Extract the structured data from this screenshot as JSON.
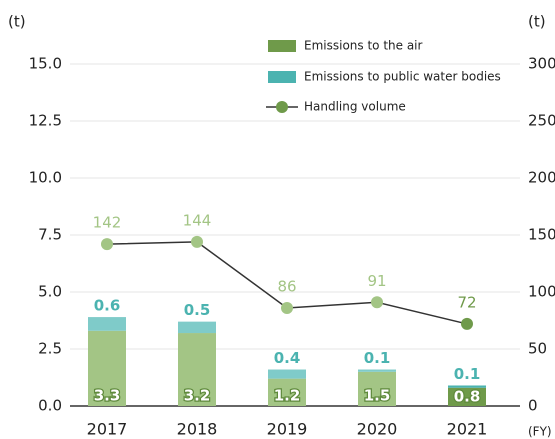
{
  "chart_data": {
    "type": "bar",
    "y_label": "(t)",
    "y2_label": "(t)",
    "x_label": "(FY)",
    "categories": [
      "2017",
      "2018",
      "2019",
      "2020",
      "2021"
    ],
    "series": [
      {
        "name": "Emissions to the air",
        "color": "#6f9a4a",
        "bar_colors": [
          "#a3c585",
          "#a3c585",
          "#a3c585",
          "#a3c585",
          "#6f9a4a"
        ],
        "values": [
          3.3,
          3.2,
          1.2,
          1.5,
          0.8
        ]
      },
      {
        "name": "Emissions to public water bodies",
        "color": "#4bb3b0",
        "bar_colors": [
          "#7fcbc9",
          "#7fcbc9",
          "#7fcbc9",
          "#7fcbc9",
          "#4bb3b0"
        ],
        "values": [
          0.6,
          0.5,
          0.4,
          0.1,
          0.1
        ]
      },
      {
        "name": "Handling volume",
        "type": "line",
        "axis": "y2",
        "color": "#6f9a4a",
        "point_colors": [
          "#a3c585",
          "#a3c585",
          "#a3c585",
          "#a3c585",
          "#6f9a4a"
        ],
        "line_color": "#333333",
        "values": [
          142,
          144,
          86,
          91,
          72
        ]
      }
    ],
    "ylim": [
      0,
      15
    ],
    "yticks": [
      {
        "value": 0,
        "label": "0.0"
      },
      2.5,
      {
        "value": 5,
        "label": "5.0"
      },
      7.5,
      {
        "value": 10,
        "label": "10.0"
      },
      12.5,
      {
        "value": 15,
        "label": "15.0"
      }
    ],
    "y2lim": [
      0,
      300
    ],
    "y2ticks": [
      0,
      50,
      100,
      150,
      200,
      250,
      300
    ],
    "grid": true,
    "legend": "top-right"
  }
}
